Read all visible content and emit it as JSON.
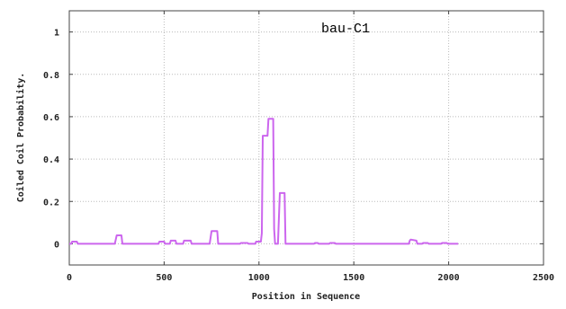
{
  "chart_data": {
    "type": "line",
    "xlabel": "Position in Sequence",
    "ylabel": "Coiled Coil Probability.",
    "xlim": [
      0,
      2500
    ],
    "ylim": [
      -0.1,
      1.1
    ],
    "grid": true,
    "x_ticks": [
      0,
      500,
      1000,
      1500,
      2000,
      2500
    ],
    "y_ticks": [
      0,
      0.2,
      0.4,
      0.6,
      0.8,
      1
    ],
    "x_tick_labels": [
      "0",
      "500",
      "1000",
      "1500",
      "2000",
      "2500"
    ],
    "y_tick_labels": [
      "0",
      "0.2",
      "0.4",
      "0.6",
      "0.8",
      "1"
    ],
    "series": [
      {
        "name": "bau-C1",
        "color": "#cc66ee",
        "x": [
          0,
          10,
          15,
          40,
          45,
          240,
          245,
          250,
          275,
          280,
          470,
          475,
          500,
          505,
          530,
          535,
          560,
          565,
          600,
          605,
          640,
          645,
          740,
          745,
          750,
          780,
          785,
          900,
          905,
          940,
          945,
          980,
          985,
          1010,
          1015,
          1020,
          1025,
          1045,
          1050,
          1070,
          1075,
          1080,
          1085,
          1100,
          1105,
          1110,
          1115,
          1135,
          1140,
          1290,
          1295,
          1310,
          1315,
          1370,
          1375,
          1400,
          1405,
          1790,
          1795,
          1800,
          1830,
          1835,
          1860,
          1865,
          1890,
          1895,
          1960,
          1965,
          1990,
          1995,
          2050
        ],
        "y": [
          0.0,
          0.0,
          0.01,
          0.01,
          0.0,
          0.0,
          0.02,
          0.04,
          0.04,
          0.0,
          0.0,
          0.01,
          0.01,
          0.0,
          0.0,
          0.015,
          0.015,
          0.0,
          0.0,
          0.015,
          0.015,
          0.0,
          0.0,
          0.03,
          0.06,
          0.06,
          0.0,
          0.0,
          0.004,
          0.004,
          0.0,
          0.0,
          0.01,
          0.01,
          0.05,
          0.51,
          0.51,
          0.51,
          0.59,
          0.59,
          0.59,
          0.07,
          0.0,
          0.0,
          0.12,
          0.24,
          0.24,
          0.24,
          0.0,
          0.0,
          0.004,
          0.004,
          0.0,
          0.0,
          0.004,
          0.004,
          0.0,
          0.0,
          0.015,
          0.02,
          0.015,
          0.0,
          0.0,
          0.004,
          0.004,
          0.0,
          0.0,
          0.004,
          0.004,
          0.0,
          0.0
        ]
      }
    ]
  }
}
